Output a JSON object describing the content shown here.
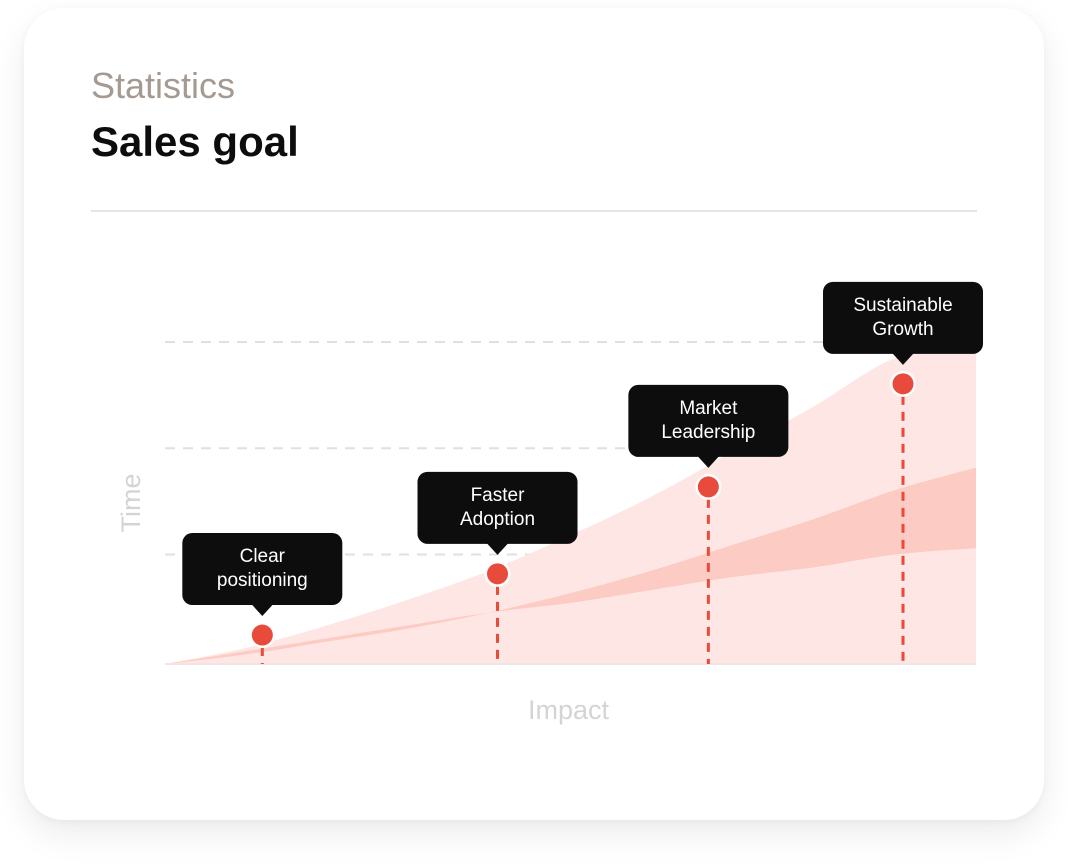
{
  "header": {
    "eyebrow": "Statistics",
    "title": "Sales goal"
  },
  "colors": {
    "accent": "#e84b3c",
    "band_light": "#fde6e3",
    "band_mid": "#fccbc3",
    "tooltip_bg": "#0d0d0d",
    "gridline": "#e0e0e0"
  },
  "chart_data": {
    "type": "area",
    "title": "",
    "xlabel": "Impact",
    "ylabel": "Time",
    "xlim": [
      0,
      100
    ],
    "ylim": [
      0,
      100
    ],
    "grid": {
      "horizontal": true,
      "dashed": true,
      "levels": [
        34,
        67,
        100
      ]
    },
    "series": [
      {
        "x": [
          0,
          10,
          20,
          30,
          40,
          50,
          60,
          70,
          80,
          90,
          100
        ],
        "values": [
          0,
          4,
          8,
          12,
          16,
          19,
          23,
          27,
          30,
          34,
          36
        ]
      },
      {
        "x": [
          0,
          10,
          20,
          30,
          40,
          50,
          60,
          70,
          80,
          90,
          100
        ],
        "values": [
          0,
          3,
          7,
          11,
          16,
          22,
          29,
          37,
          45,
          54,
          61
        ]
      },
      {
        "x": [
          0,
          10,
          20,
          30,
          40,
          50,
          60,
          70,
          80,
          90,
          100
        ],
        "values": [
          0,
          5,
          12,
          20,
          29,
          40,
          52,
          66,
          80,
          95,
          100
        ]
      }
    ],
    "milestones": [
      {
        "label": [
          "Clear",
          "positioning"
        ],
        "x": 12,
        "y": 9
      },
      {
        "label": [
          "Faster",
          "Adoption"
        ],
        "x": 41,
        "y": 28
      },
      {
        "label": [
          "Market",
          "Leadership"
        ],
        "x": 67,
        "y": 55
      },
      {
        "label": [
          "Sustainable",
          "Growth"
        ],
        "x": 91,
        "y": 87
      }
    ]
  }
}
